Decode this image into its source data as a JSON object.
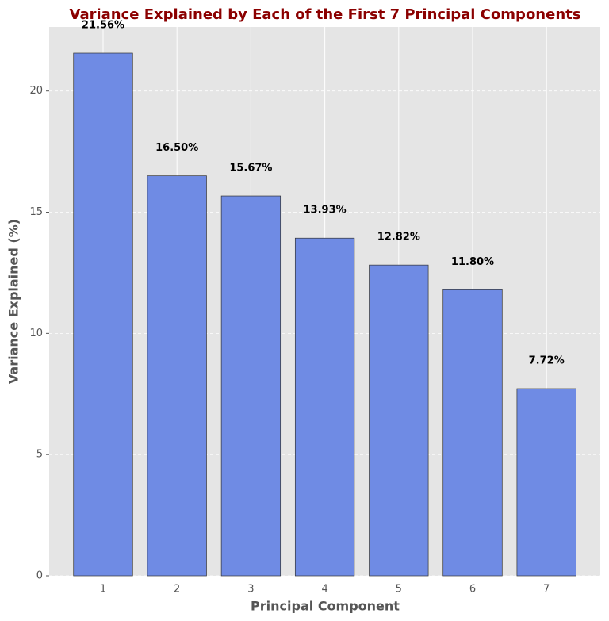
{
  "chart_data": {
    "type": "bar",
    "title": "Variance Explained by Each of the First 7 Principal Components",
    "x_label": "Principal Component",
    "y_label": "Variance Explained (%)",
    "categories": [
      "1",
      "2",
      "3",
      "4",
      "5",
      "6",
      "7"
    ],
    "values": [
      21.56,
      16.5,
      15.67,
      13.93,
      12.82,
      11.8,
      7.72
    ],
    "value_labels": [
      "21.56%",
      "16.50%",
      "15.67%",
      "13.93%",
      "12.82%",
      "11.80%",
      "7.72%"
    ],
    "color": "#6f8be4",
    "ylim": [
      0,
      22.64
    ],
    "yticks": [
      0,
      5,
      10,
      15,
      20
    ],
    "grid": true
  }
}
